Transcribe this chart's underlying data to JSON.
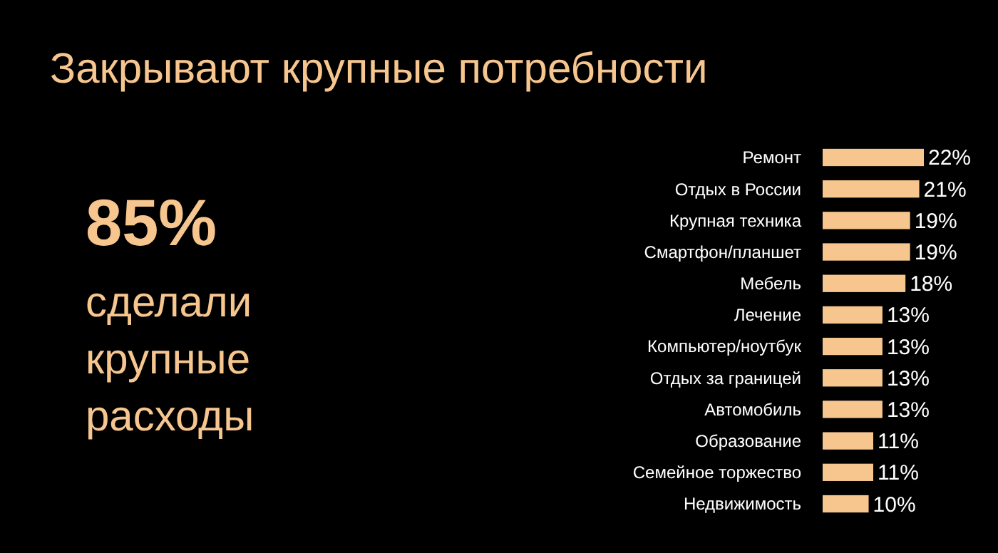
{
  "chart_data": {
    "type": "bar",
    "orientation": "horizontal",
    "title": "Закрывают крупные потребности",
    "categories": [
      "Ремонт",
      "Отдых в России",
      "Крупная техника",
      "Смартфон/планшет",
      "Мебель",
      "Лечение",
      "Компьютер/ноутбук",
      "Отдых за границей",
      "Автомобиль",
      "Образование",
      "Семейное торжество",
      "Недвижимость"
    ],
    "values": [
      22,
      21,
      19,
      19,
      18,
      13,
      13,
      13,
      13,
      11,
      11,
      10
    ],
    "value_labels": [
      "22%",
      "21%",
      "19%",
      "19%",
      "18%",
      "13%",
      "13%",
      "13%",
      "13%",
      "11%",
      "11%",
      "10%"
    ],
    "color": "#f7c68f",
    "annotations": [
      "85%",
      "сделали крупные расходы"
    ]
  }
}
